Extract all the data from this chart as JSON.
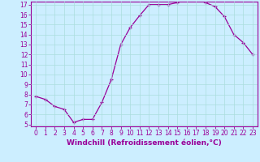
{
  "x": [
    0,
    1,
    2,
    3,
    4,
    5,
    6,
    7,
    8,
    9,
    10,
    11,
    12,
    13,
    14,
    15,
    16,
    17,
    18,
    19,
    20,
    21,
    22,
    23
  ],
  "y": [
    7.8,
    7.5,
    6.8,
    6.5,
    5.2,
    5.5,
    5.5,
    7.2,
    9.5,
    13.0,
    14.7,
    15.9,
    17.0,
    17.0,
    17.0,
    17.2,
    17.5,
    17.5,
    17.2,
    16.8,
    15.8,
    14.0,
    13.2,
    12.0
  ],
  "line_color": "#990099",
  "marker": "+",
  "marker_color": "#990099",
  "bg_color": "#cceeff",
  "grid_color": "#aadddd",
  "axis_color": "#990099",
  "xlabel": "Windchill (Refroidissement éolien,°C)",
  "ylim": [
    5,
    17
  ],
  "xlim": [
    -0.5,
    23.5
  ],
  "yticks": [
    5,
    6,
    7,
    8,
    9,
    10,
    11,
    12,
    13,
    14,
    15,
    16,
    17
  ],
  "xticks": [
    0,
    1,
    2,
    3,
    4,
    5,
    6,
    7,
    8,
    9,
    10,
    11,
    12,
    13,
    14,
    15,
    16,
    17,
    18,
    19,
    20,
    21,
    22,
    23
  ],
  "tick_label_size": 5.5,
  "xlabel_size": 6.5
}
